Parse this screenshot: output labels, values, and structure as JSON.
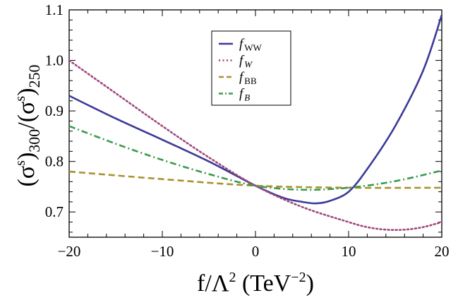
{
  "chart_data": {
    "type": "line",
    "xlim": [
      -20,
      20
    ],
    "ylim": [
      0.65,
      1.1
    ],
    "x_ticks": [
      -20,
      -10,
      0,
      10,
      20
    ],
    "x_tick_labels": [
      "−20",
      "−10",
      "0",
      "10",
      "20"
    ],
    "y_ticks": [
      0.7,
      0.8,
      0.9,
      1.0,
      1.1
    ],
    "y_tick_labels": [
      "0.7",
      "0.8",
      "0.9",
      "1.0",
      "1.1"
    ],
    "xlabel": {
      "main": "f/Λ",
      "sup": "2",
      "unit_open": " (TeV",
      "unit_sup": "−2",
      "unit_close": ")"
    },
    "ylabel": {
      "p1_open": "(σ",
      "p1_sup": "s",
      "p1_close": ")",
      "p1_sub": "300",
      "slash": "/",
      "p2_open": "(σ",
      "p2_sup": "s",
      "p2_close": ")",
      "p2_sub": "250"
    },
    "grid": false,
    "legend_position": "top-center",
    "series": [
      {
        "name": "f",
        "name_sub": "WW",
        "sub_italic": false,
        "color": "#3b3a98",
        "dash": "solid",
        "x": [
          -20,
          -15,
          -10,
          -5,
          0,
          3,
          5,
          6.5,
          8,
          10,
          12,
          15,
          18,
          20
        ],
        "y": [
          0.93,
          0.885,
          0.843,
          0.8,
          0.752,
          0.728,
          0.72,
          0.717,
          0.722,
          0.74,
          0.785,
          0.87,
          0.98,
          1.09
        ]
      },
      {
        "name": "f",
        "name_sub": "W",
        "sub_italic": true,
        "color": "#a0477c",
        "dash": "dot",
        "x": [
          -20,
          -15,
          -10,
          -5,
          0,
          5,
          10,
          12,
          14,
          16,
          18,
          20
        ],
        "y": [
          1.0,
          0.935,
          0.87,
          0.808,
          0.752,
          0.71,
          0.68,
          0.67,
          0.665,
          0.665,
          0.67,
          0.68
        ]
      },
      {
        "name": "f",
        "name_sub": "BB",
        "sub_italic": false,
        "color": "#a8922c",
        "dash": "dash",
        "x": [
          -20,
          -10,
          0,
          10,
          20
        ],
        "y": [
          0.78,
          0.765,
          0.752,
          0.748,
          0.748
        ]
      },
      {
        "name": "f",
        "name_sub": "B",
        "sub_italic": true,
        "color": "#3b9a4c",
        "dash": "dashdot",
        "x": [
          -20,
          -15,
          -10,
          -5,
          0,
          5,
          10,
          15,
          20
        ],
        "y": [
          0.87,
          0.835,
          0.803,
          0.775,
          0.752,
          0.744,
          0.748,
          0.761,
          0.782
        ]
      }
    ]
  }
}
